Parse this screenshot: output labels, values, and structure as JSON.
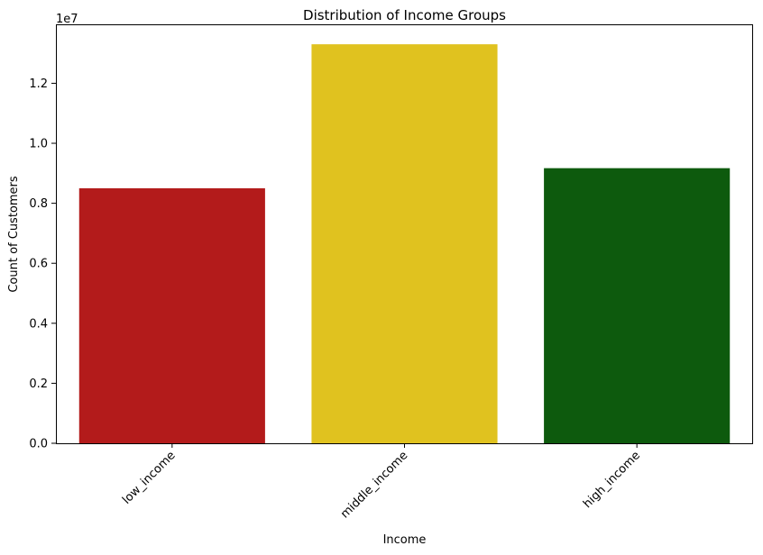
{
  "chart_data": {
    "type": "bar",
    "title": "Distribution of Income Groups",
    "xlabel": "Income",
    "ylabel": "Count of Customers",
    "y_offset_text": "1e7",
    "categories": [
      "low_income",
      "middle_income",
      "high_income"
    ],
    "values": [
      8500000,
      13300000,
      9170000
    ],
    "bar_colors": [
      "#b31b1b",
      "#e0c21f",
      "#0d5a0d"
    ],
    "ylim": [
      0,
      13965000
    ],
    "y_ticks": [
      0,
      2000000,
      4000000,
      6000000,
      8000000,
      10000000,
      12000000
    ],
    "y_tick_labels": [
      "0.0",
      "0.2",
      "0.4",
      "0.6",
      "0.8",
      "1.0",
      "1.2"
    ],
    "grid": false,
    "legend": "none"
  }
}
